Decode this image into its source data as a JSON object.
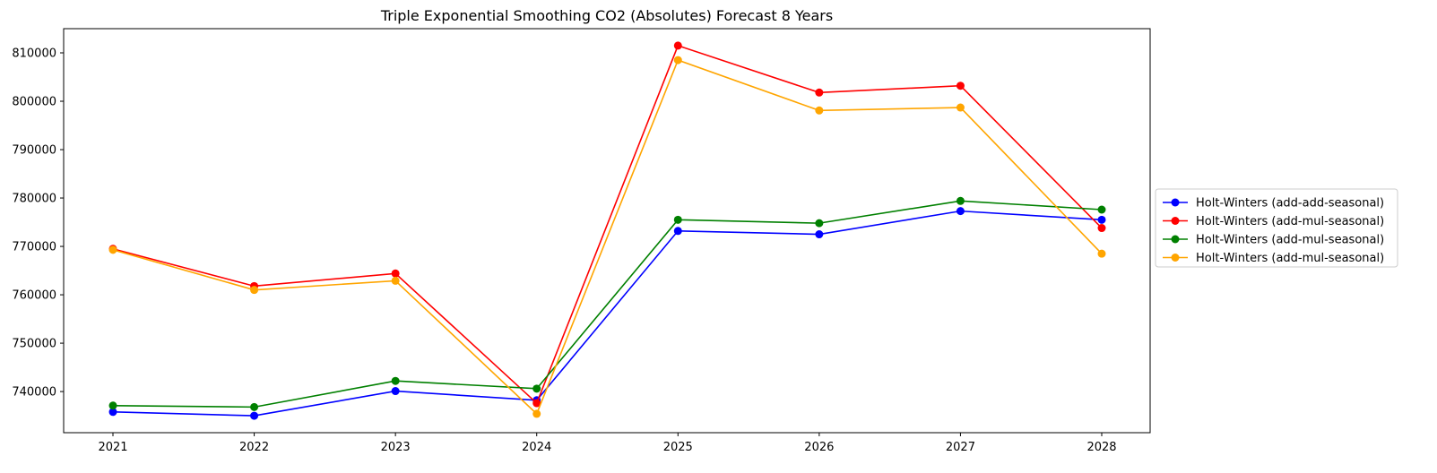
{
  "chart_data": {
    "type": "line",
    "title": "Triple Exponential Smoothing CO2 (Absolutes) Forecast 8 Years",
    "xlabel": "",
    "ylabel": "",
    "categories": [
      "2021",
      "2022",
      "2023",
      "2024",
      "2025",
      "2026",
      "2027",
      "2028"
    ],
    "ylim": [
      731500,
      815000
    ],
    "yticks": [
      740000,
      750000,
      760000,
      770000,
      780000,
      790000,
      800000,
      810000
    ],
    "grid": false,
    "legend_position": "center-right-outside",
    "series": [
      {
        "name": "Holt-Winters (add-add-seasonal)",
        "color": "#0000ff",
        "marker": "circle",
        "values": [
          735800,
          735000,
          740100,
          738200,
          773200,
          772500,
          777300,
          775500
        ]
      },
      {
        "name": "Holt-Winters (add-mul-seasonal)",
        "color": "#ff0000",
        "marker": "circle",
        "values": [
          769500,
          761800,
          764400,
          737600,
          811500,
          801800,
          803200,
          773800
        ]
      },
      {
        "name": "Holt-Winters (add-mul-seasonal)",
        "color": "#008000",
        "marker": "circle",
        "values": [
          737100,
          736800,
          742200,
          740600,
          775500,
          774800,
          779400,
          777600
        ]
      },
      {
        "name": "Holt-Winters (add-mul-seasonal)",
        "color": "#ffa500",
        "marker": "circle",
        "values": [
          769300,
          761000,
          762900,
          735400,
          808500,
          798100,
          798700,
          768500
        ]
      }
    ]
  }
}
